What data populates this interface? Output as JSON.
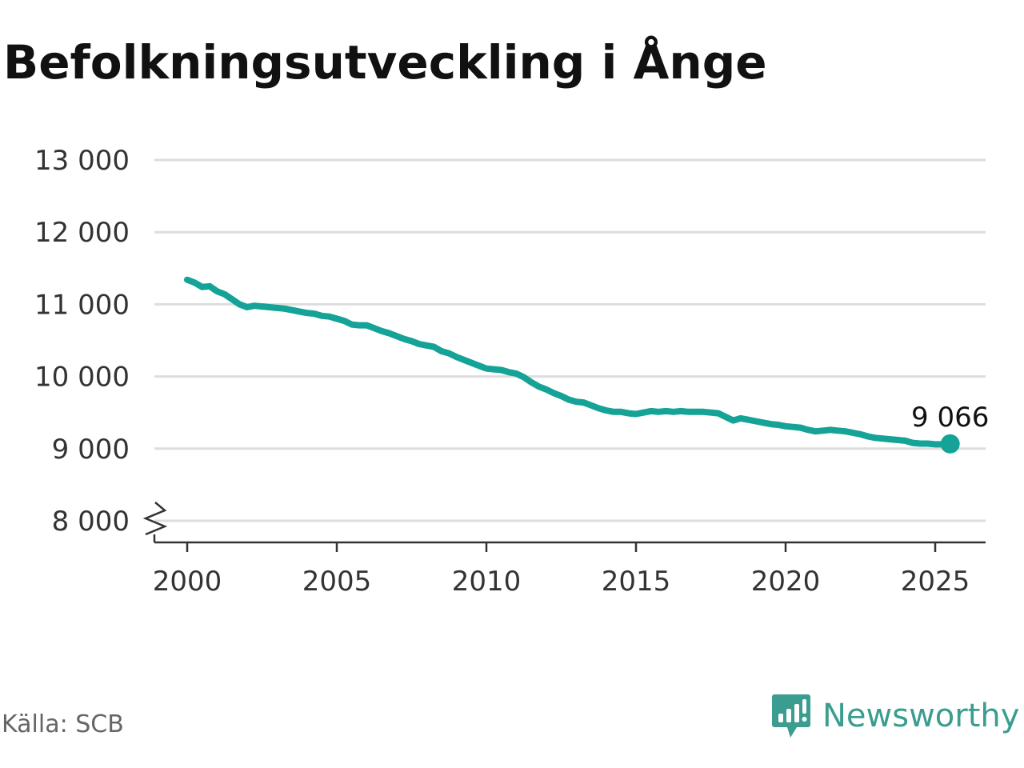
{
  "title": "Befolkningsutveckling i Ånge",
  "source": "Källa: SCB",
  "brand": {
    "name": "Newsworthy"
  },
  "colors": {
    "line": "#14a396",
    "grid": "#dddddd",
    "axis": "#333333",
    "brand": "#3a9d8f"
  },
  "chart_data": {
    "type": "line",
    "title": "Befolkningsutveckling i Ånge",
    "xlabel": "",
    "ylabel": "",
    "xlim": [
      1999.5,
      2026.5
    ],
    "ylim": [
      7700,
      13000
    ],
    "yticks": [
      8000,
      9000,
      10000,
      11000,
      12000,
      13000
    ],
    "ytick_labels": [
      "8 000",
      "9 000",
      "10 000",
      "11 000",
      "12 000",
      "13 000"
    ],
    "xticks": [
      2000,
      2005,
      2010,
      2015,
      2020,
      2025
    ],
    "xtick_labels": [
      "2000",
      "2005",
      "2010",
      "2015",
      "2020",
      "2025"
    ],
    "axis_break": true,
    "grid": true,
    "end_label": "9 066",
    "series": [
      {
        "x": [
          2000.0,
          2000.25,
          2000.5,
          2000.75,
          2001.0,
          2001.25,
          2001.5,
          2001.75,
          2002.0,
          2002.25,
          2002.5,
          2002.75,
          2003.0,
          2003.25,
          2003.5,
          2003.75,
          2004.0,
          2004.25,
          2004.5,
          2004.75,
          2005.0,
          2005.25,
          2005.5,
          2005.75,
          2006.0,
          2006.25,
          2006.5,
          2006.75,
          2007.0,
          2007.25,
          2007.5,
          2007.75,
          2008.0,
          2008.25,
          2008.5,
          2008.75,
          2009.0,
          2009.25,
          2009.5,
          2009.75,
          2010.0,
          2010.25,
          2010.5,
          2010.75,
          2011.0,
          2011.25,
          2011.5,
          2011.75,
          2012.0,
          2012.25,
          2012.5,
          2012.75,
          2013.0,
          2013.25,
          2013.5,
          2013.75,
          2014.0,
          2014.25,
          2014.5,
          2014.75,
          2015.0,
          2015.25,
          2015.5,
          2015.75,
          2016.0,
          2016.25,
          2016.5,
          2016.75,
          2017.0,
          2017.25,
          2017.5,
          2017.75,
          2018.0,
          2018.25,
          2018.5,
          2018.75,
          2019.0,
          2019.25,
          2019.5,
          2019.75,
          2020.0,
          2020.25,
          2020.5,
          2020.75,
          2021.0,
          2021.25,
          2021.5,
          2021.75,
          2022.0,
          2022.25,
          2022.5,
          2022.75,
          2023.0,
          2023.25,
          2023.5,
          2023.75,
          2024.0,
          2024.25,
          2024.5,
          2024.75,
          2025.0,
          2025.25,
          2025.5
        ],
        "values": [
          11340,
          11300,
          11240,
          11250,
          11180,
          11140,
          11070,
          11000,
          10960,
          10980,
          10970,
          10960,
          10950,
          10940,
          10920,
          10900,
          10880,
          10870,
          10840,
          10830,
          10800,
          10770,
          10720,
          10710,
          10710,
          10670,
          10630,
          10600,
          10560,
          10520,
          10490,
          10450,
          10430,
          10410,
          10350,
          10320,
          10270,
          10230,
          10190,
          10150,
          10110,
          10100,
          10090,
          10060,
          10040,
          9990,
          9920,
          9860,
          9820,
          9770,
          9730,
          9680,
          9650,
          9640,
          9600,
          9560,
          9530,
          9510,
          9510,
          9490,
          9480,
          9500,
          9520,
          9510,
          9520,
          9510,
          9520,
          9510,
          9510,
          9510,
          9500,
          9490,
          9440,
          9390,
          9420,
          9400,
          9380,
          9360,
          9340,
          9330,
          9310,
          9300,
          9290,
          9260,
          9240,
          9250,
          9260,
          9250,
          9240,
          9220,
          9200,
          9170,
          9150,
          9140,
          9130,
          9120,
          9110,
          9080,
          9070,
          9070,
          9060,
          9060,
          9066
        ]
      }
    ]
  }
}
